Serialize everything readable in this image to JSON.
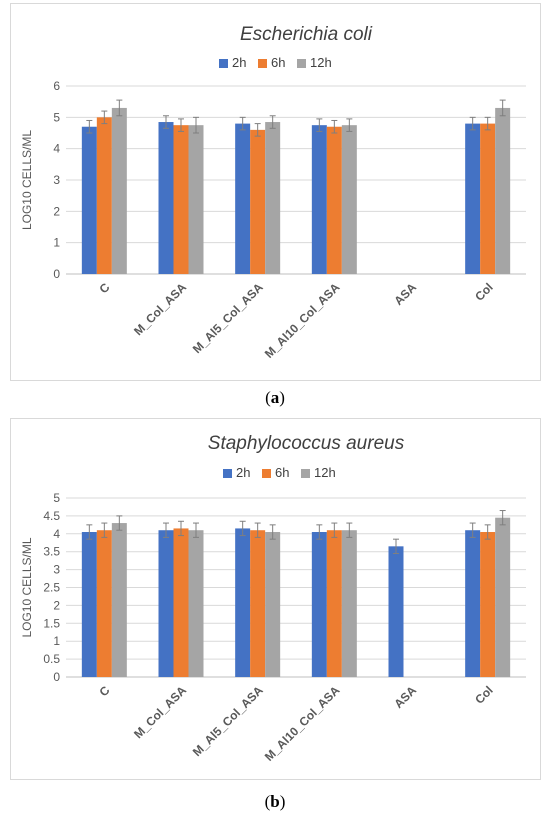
{
  "colors": {
    "2h": "#4472C4",
    "6h": "#ED7D31",
    "12h": "#A5A5A5"
  },
  "captions": {
    "a": {
      "open": "(",
      "letter": "a",
      "close": ")"
    },
    "b": {
      "open": "(",
      "letter": "b",
      "close": ")"
    }
  },
  "chart_data": [
    {
      "type": "bar",
      "title": "Escherichia coli",
      "ylabel": "LOG10 CELLS/ML",
      "xlabel": "",
      "ylim": [
        0,
        6
      ],
      "yticks": [
        "0",
        "1",
        "2",
        "3",
        "4",
        "5",
        "6"
      ],
      "grid": true,
      "legend_position": "top",
      "error_bars": true,
      "categories": [
        "C",
        "M_Col_ASA",
        "M_Al5_Col_ASA",
        "M_Al10_Col_ASA",
        "ASA",
        "Col"
      ],
      "series": [
        {
          "name": "2h",
          "color": "#4472C4",
          "values": [
            4.7,
            4.85,
            4.8,
            4.75,
            null,
            4.8
          ],
          "errors": [
            0.2,
            0.2,
            0.2,
            0.2,
            null,
            0.2
          ]
        },
        {
          "name": "6h",
          "color": "#ED7D31",
          "values": [
            5.0,
            4.75,
            4.6,
            4.7,
            null,
            4.8
          ],
          "errors": [
            0.2,
            0.2,
            0.2,
            0.2,
            null,
            0.2
          ]
        },
        {
          "name": "12h",
          "color": "#A5A5A5",
          "values": [
            5.3,
            4.75,
            4.85,
            4.75,
            null,
            5.3
          ],
          "errors": [
            0.25,
            0.25,
            0.2,
            0.2,
            null,
            0.25
          ]
        }
      ]
    },
    {
      "type": "bar",
      "title": "Staphylococcus aureus",
      "ylabel": "LOG10 CELLS/ML",
      "xlabel": "",
      "ylim": [
        0,
        5
      ],
      "yticks": [
        "0",
        "0.5",
        "1",
        "1.5",
        "2",
        "2.5",
        "3",
        "3.5",
        "4",
        "4.5",
        "5"
      ],
      "grid": true,
      "legend_position": "top",
      "error_bars": true,
      "categories": [
        "C",
        "M_Col_ASA",
        "M_Al5_Col_ASA",
        "M_Al10_Col_ASA",
        "ASA",
        "Col"
      ],
      "series": [
        {
          "name": "2h",
          "color": "#4472C4",
          "values": [
            4.05,
            4.1,
            4.15,
            4.05,
            3.65,
            4.1
          ],
          "errors": [
            0.2,
            0.2,
            0.2,
            0.2,
            0.2,
            0.2
          ]
        },
        {
          "name": "6h",
          "color": "#ED7D31",
          "values": [
            4.1,
            4.15,
            4.1,
            4.1,
            null,
            4.05
          ],
          "errors": [
            0.2,
            0.2,
            0.2,
            0.2,
            null,
            0.2
          ]
        },
        {
          "name": "12h",
          "color": "#A5A5A5",
          "values": [
            4.3,
            4.1,
            4.05,
            4.1,
            null,
            4.45
          ],
          "errors": [
            0.2,
            0.2,
            0.2,
            0.2,
            null,
            0.2
          ]
        }
      ]
    }
  ]
}
